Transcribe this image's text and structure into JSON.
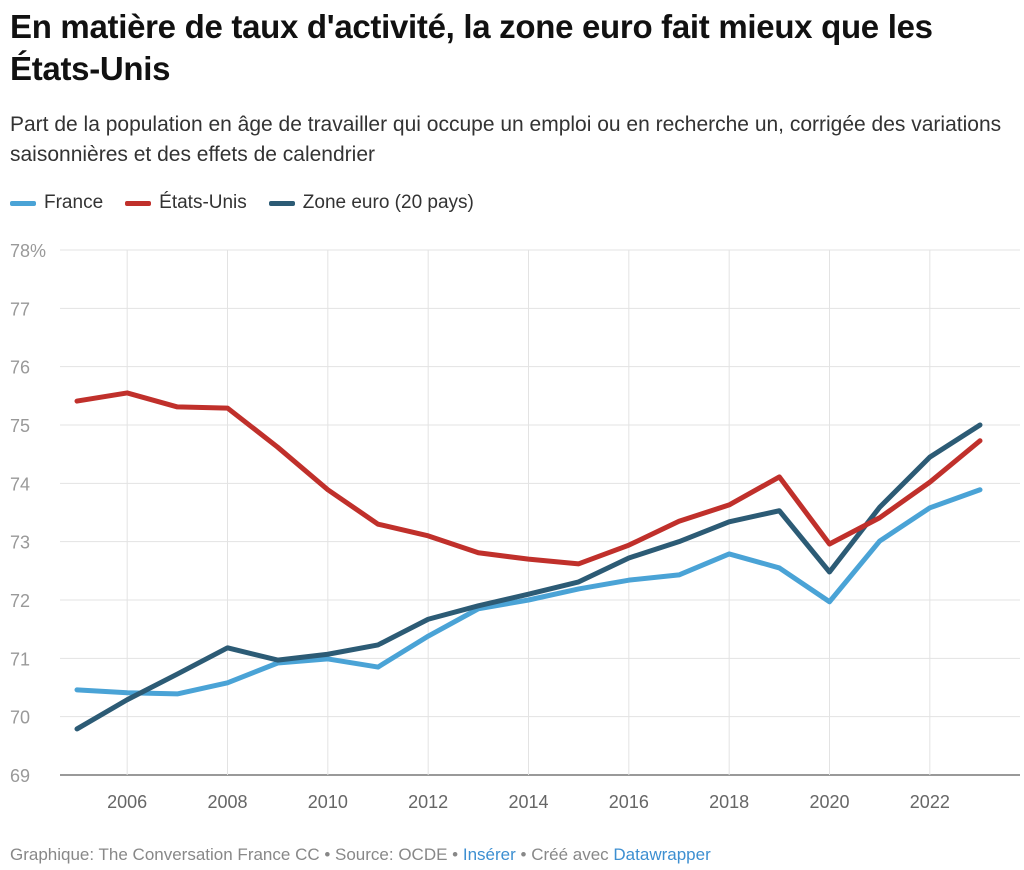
{
  "title": "En matière de taux d'activité, la zone euro fait mieux que les États-Unis",
  "subtitle": "Part de la population en âge de travailler qui occupe un emploi ou en recherche un, corrigée des variations saisonnières et des effets de calendrier",
  "footer": {
    "credit": "Graphique: The Conversation France CC • Source: OCDE •",
    "insert_link": "Insérer",
    "created": " • Créé avec",
    "datawrapper_link": "Datawrapper"
  },
  "chart_data": {
    "type": "line",
    "title": "En matière de taux d'activité, la zone euro fait mieux que les États-Unis",
    "xlabel": "",
    "ylabel": "",
    "x": [
      2005,
      2006,
      2007,
      2008,
      2009,
      2010,
      2011,
      2012,
      2013,
      2014,
      2015,
      2016,
      2017,
      2018,
      2019,
      2020,
      2021,
      2022,
      2023
    ],
    "xlim": [
      2005,
      2023
    ],
    "ylim": [
      69,
      78
    ],
    "x_ticks": [
      "2006",
      "2008",
      "2010",
      "2012",
      "2014",
      "2016",
      "2018",
      "2020",
      "2022"
    ],
    "y_ticks": [
      "69",
      "70",
      "71",
      "72",
      "73",
      "74",
      "75",
      "76",
      "77",
      "78%"
    ],
    "grid": true,
    "legend_position": "top-left",
    "series": [
      {
        "name": "France",
        "color": "#4aa3d6",
        "values": [
          70.46,
          70.41,
          70.39,
          70.58,
          70.92,
          70.99,
          70.85,
          71.38,
          71.85,
          72.0,
          72.19,
          72.34,
          72.43,
          72.79,
          72.55,
          71.97,
          73.01,
          73.58,
          73.89
        ]
      },
      {
        "name": "États-Unis",
        "color": "#c0302b",
        "values": [
          75.41,
          75.55,
          75.31,
          75.29,
          74.62,
          73.89,
          73.3,
          73.1,
          72.81,
          72.7,
          72.62,
          72.94,
          73.35,
          73.63,
          74.11,
          72.96,
          73.41,
          74.02,
          74.73
        ]
      },
      {
        "name": "Zone euro (20 pays)",
        "color": "#2c5b75",
        "values": [
          69.79,
          70.29,
          70.73,
          71.18,
          70.97,
          71.07,
          71.23,
          71.67,
          71.9,
          72.1,
          72.31,
          72.72,
          73.0,
          73.34,
          73.53,
          72.48,
          73.59,
          74.45,
          75.0
        ]
      }
    ]
  }
}
